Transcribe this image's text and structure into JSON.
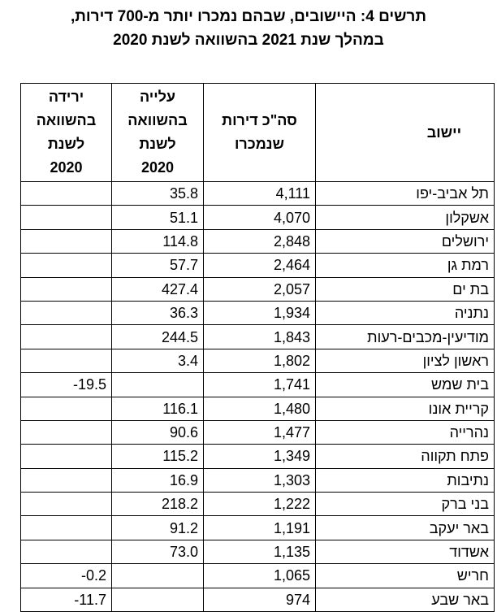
{
  "header": {
    "title": [
      "תרשים 4: היישובים, שבהם נמכרו יותר מ-700 דירות,",
      "במהלך שנת 2021 בהשוואה לשנת 2020"
    ]
  },
  "table": {
    "columns": [
      [
        "יישוב"
      ],
      [
        "סה\"כ דירות",
        "שנמכרו"
      ],
      [
        "עלייה",
        "בהשוואה",
        "לשנת",
        "2020"
      ],
      [
        "ירידה",
        "בהשוואה",
        "לשנת",
        "2020"
      ]
    ],
    "rows": [
      {
        "name": "תל אביב-יפו",
        "total": "4,111",
        "rise": "35.8"
      },
      {
        "name": "אשקלון",
        "total": "4,070",
        "rise": "51.1"
      },
      {
        "name": "ירושלים",
        "total": "2,848",
        "rise": "114.8"
      },
      {
        "name": "רמת גן",
        "total": "2,464",
        "rise": "57.7"
      },
      {
        "name": "בת ים",
        "total": "2,057",
        "rise": "427.4"
      },
      {
        "name": "נתניה",
        "total": "1,934",
        "rise": "36.3"
      },
      {
        "name": "מודיעין-מכבים-רעות",
        "total": "1,843",
        "rise": "244.5"
      },
      {
        "name": "ראשון לציון",
        "total": "1,802",
        "rise": "3.4"
      },
      {
        "name": "בית שמש",
        "total": "1,741",
        "drop": "-19.5"
      },
      {
        "name": "קריית אונו",
        "total": "1,480",
        "rise": "116.1"
      },
      {
        "name": "נהרייה",
        "total": "1,477",
        "rise": "90.6"
      },
      {
        "name": "פתח תקווה",
        "total": "1,349",
        "rise": "115.2"
      },
      {
        "name": "נתיבות",
        "total": "1,303",
        "rise": "16.9"
      },
      {
        "name": "בני ברק",
        "total": "1,222",
        "rise": "218.2"
      },
      {
        "name": "באר יעקב",
        "total": "1,191",
        "rise": "91.2"
      },
      {
        "name": "אשדוד",
        "total": "1,135",
        "rise": "73.0"
      },
      {
        "name": "חריש",
        "total": "1,065",
        "drop": "-0.2"
      },
      {
        "name": "באר שבע",
        "total": "974",
        "drop": "-11.7"
      }
    ]
  }
}
